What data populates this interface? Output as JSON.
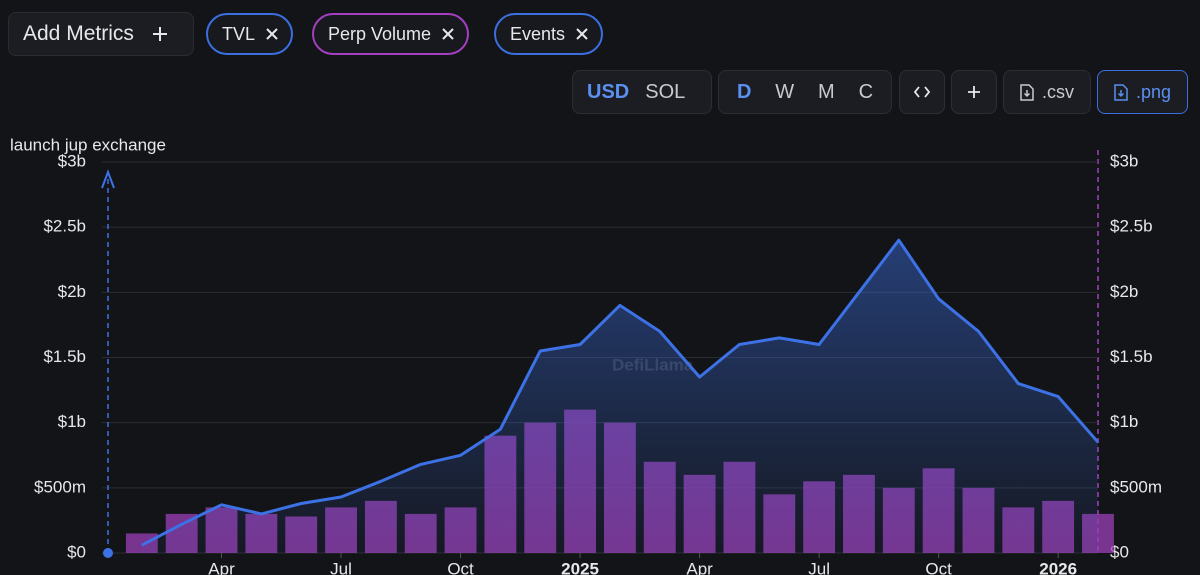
{
  "toolbar": {
    "add_metrics": "Add Metrics",
    "chips": [
      "TVL",
      "Perp Volume",
      "Events"
    ],
    "denomination": [
      "USD",
      "SOL"
    ],
    "groupings": [
      "D",
      "W",
      "M",
      "C"
    ],
    "downloads": [
      ".csv",
      ".png"
    ]
  },
  "chart_data": {
    "type": "combo",
    "watermark": "DefiLlama",
    "x": [
      "2024-02",
      "2024-03",
      "2024-04",
      "2024-05",
      "2024-06",
      "2024-07",
      "2024-08",
      "2024-09",
      "2024-10",
      "2024-11",
      "2024-12",
      "2025-01",
      "2025-02",
      "2025-03",
      "2025-04",
      "2025-05",
      "2025-06",
      "2025-07",
      "2025-08",
      "2025-09",
      "2025-10",
      "2025-11",
      "2025-12",
      "2026-01",
      "2026-02"
    ],
    "series": [
      {
        "name": "Perp Volume",
        "type": "bar",
        "axis": "y2",
        "color": "#9b3fb5",
        "values": [
          150000000,
          300000000,
          350000000,
          300000000,
          280000000,
          350000000,
          400000000,
          300000000,
          350000000,
          900000000,
          1000000000,
          1100000000,
          1000000000,
          700000000,
          600000000,
          700000000,
          450000000,
          550000000,
          600000000,
          500000000,
          650000000,
          500000000,
          350000000,
          400000000,
          300000000
        ]
      },
      {
        "name": "TVL",
        "type": "line",
        "color": "#3d72e6",
        "values": [
          60000000,
          220000000,
          370000000,
          300000000,
          380000000,
          430000000,
          550000000,
          680000000,
          750000000,
          950000000,
          1550000000,
          1600000000,
          1900000000,
          1700000000,
          1350000000,
          1600000000,
          1650000000,
          1600000000,
          2000000000,
          2400000000,
          1950000000,
          1700000000,
          1300000000,
          1200000000,
          850000000
        ]
      }
    ],
    "events": [
      {
        "x": "2024-01",
        "label": "launch jup exchange"
      }
    ],
    "xlim": [
      "2024-01",
      "2026-02"
    ],
    "xticks": [
      {
        "value": "2024-04",
        "label": "Apr"
      },
      {
        "value": "2024-07",
        "label": "Jul"
      },
      {
        "value": "2024-10",
        "label": "Oct"
      },
      {
        "value": "2025-01",
        "label": "2025"
      },
      {
        "value": "2025-04",
        "label": "Apr"
      },
      {
        "value": "2025-07",
        "label": "Jul"
      },
      {
        "value": "2025-10",
        "label": "Oct"
      },
      {
        "value": "2026-01",
        "label": "2026"
      }
    ],
    "ylim": [
      0,
      3000000000
    ],
    "yticks": [
      {
        "value": 0,
        "label": "$0"
      },
      {
        "value": 500000000,
        "label": "$500m"
      },
      {
        "value": 1000000000,
        "label": "$1b"
      },
      {
        "value": 1500000000,
        "label": "$1.5b"
      },
      {
        "value": 2000000000,
        "label": "$2b"
      },
      {
        "value": 2500000000,
        "label": "$2.5b"
      },
      {
        "value": 3000000000,
        "label": "$3b"
      }
    ],
    "y2lim": [
      0,
      3000000000
    ],
    "y2ticks": [
      {
        "value": 0,
        "label": "$0"
      },
      {
        "value": 500000000,
        "label": "$500m"
      },
      {
        "value": 1000000000,
        "label": "$1b"
      },
      {
        "value": 1500000000,
        "label": "$1.5b"
      },
      {
        "value": 2000000000,
        "label": "$2b"
      },
      {
        "value": 2500000000,
        "label": "$2.5b"
      },
      {
        "value": 3000000000,
        "label": "$3b"
      }
    ],
    "grid": true
  }
}
